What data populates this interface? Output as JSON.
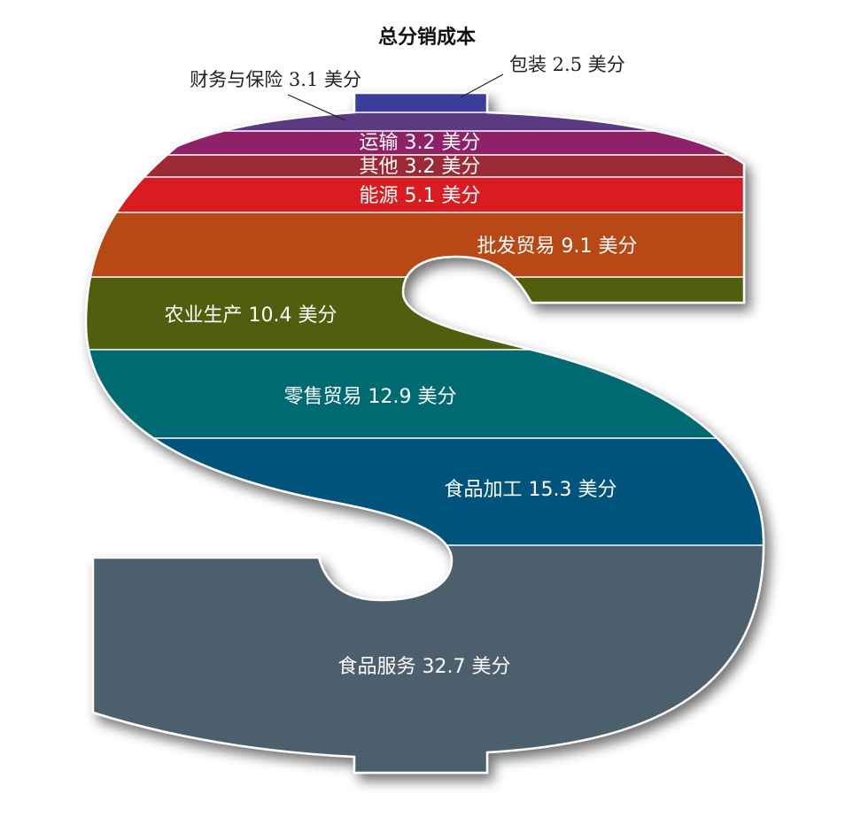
{
  "chart_data": {
    "type": "pictograph",
    "title": "总分销成本",
    "unit": "美分",
    "items": [
      {
        "label": "包装 2.5 美分",
        "category": "包装",
        "value": 2.5,
        "color": "#3a3d9a"
      },
      {
        "label": "财务与保险 3.1 美分",
        "category": "财务与保险",
        "value": 3.1,
        "color": "#5a3a82"
      },
      {
        "label": "运输 3.2 美分",
        "category": "运输",
        "value": 3.2,
        "color": "#8e2268"
      },
      {
        "label": "其他 3.2 美分",
        "category": "其他",
        "value": 3.2,
        "color": "#9c2a34"
      },
      {
        "label": "能源 5.1 美分",
        "category": "能源",
        "value": 5.1,
        "color": "#d81c24"
      },
      {
        "label": "批发贸易 9.1 美分",
        "category": "批发贸易",
        "value": 9.1,
        "color": "#b84813"
      },
      {
        "label": "农业生产 10.4 美分",
        "category": "农业生产",
        "value": 10.4,
        "color": "#4f5f0e"
      },
      {
        "label": "零售贸易 12.9 美分",
        "category": "零售贸易",
        "value": 12.9,
        "color": "#046a72"
      },
      {
        "label": "食品加工 15.3 美分",
        "category": "食品加工",
        "value": 15.3,
        "color": "#04527a"
      },
      {
        "label": "食品服务 32.7 美分",
        "category": "食品服务",
        "value": 32.7,
        "color": "#4b5e6d"
      }
    ]
  }
}
